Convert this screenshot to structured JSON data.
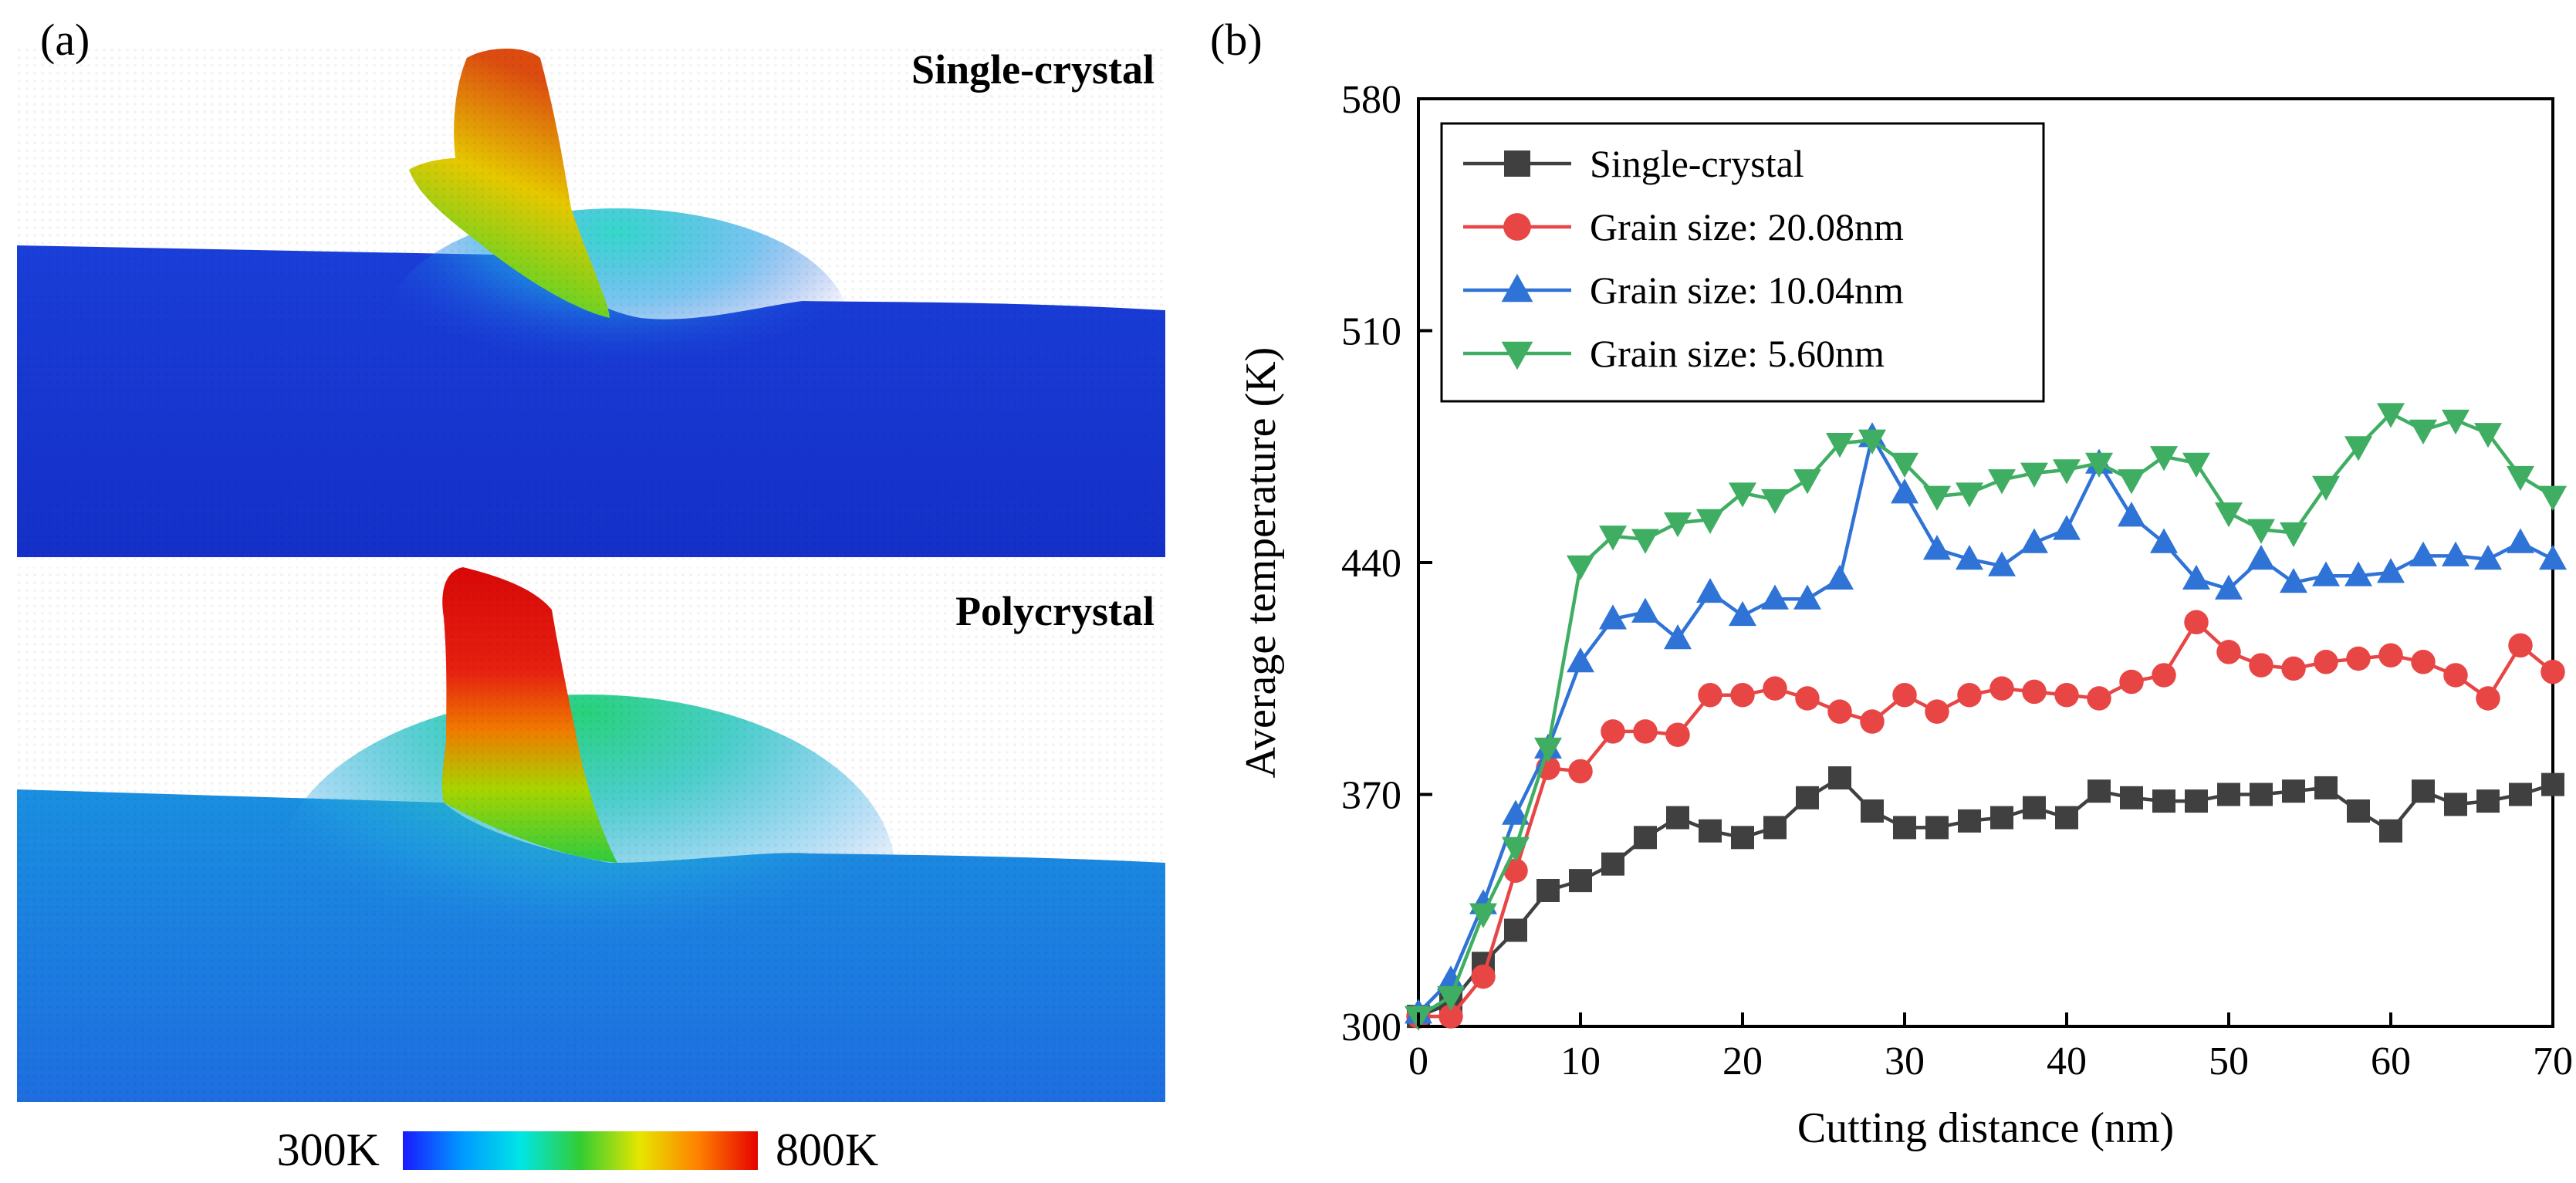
{
  "panel_a": {
    "label": "(a)",
    "top_title": "Single-crystal",
    "bottom_title": "Polycrystal",
    "colorbar": {
      "min_label": "300K",
      "max_label": "800K",
      "colors": [
        "#1a1aff",
        "#0099ff",
        "#00e6e6",
        "#33cc33",
        "#e6e600",
        "#ff8000",
        "#e60000"
      ]
    }
  },
  "panel_b": {
    "label": "(b)"
  },
  "chart_data": {
    "type": "line",
    "title": "",
    "xlabel": "Cutting distance (nm)",
    "ylabel": "Average temperature (K)",
    "xlim": [
      0,
      70
    ],
    "ylim": [
      300,
      580
    ],
    "xticks": [
      0,
      10,
      20,
      30,
      40,
      50,
      60,
      70
    ],
    "yticks": [
      300,
      370,
      440,
      510,
      580
    ],
    "legend_position": "top-left",
    "grid": false,
    "x": [
      0,
      2,
      4,
      6,
      8,
      10,
      12,
      14,
      16,
      18,
      20,
      22,
      24,
      26,
      28,
      30,
      32,
      34,
      36,
      38,
      40,
      42,
      44,
      46,
      48,
      50,
      52,
      54,
      56,
      58,
      60,
      62,
      64,
      66,
      68,
      70
    ],
    "series": [
      {
        "name": "Single-crystal",
        "color": "#404040",
        "marker": "square",
        "values": [
          303,
          307,
          319,
          329,
          341,
          344,
          349,
          357,
          363,
          359,
          357,
          360,
          369,
          375,
          365,
          360,
          360,
          362,
          363,
          366,
          363,
          371,
          369,
          368,
          368,
          370,
          370,
          371,
          372,
          365,
          359,
          371,
          367,
          368,
          370,
          373
        ]
      },
      {
        "name": "Grain size: 20.08nm",
        "color": "#e84545",
        "marker": "circle",
        "values": [
          303,
          303,
          315,
          347,
          378,
          377,
          389,
          389,
          388,
          400,
          400,
          402,
          399,
          395,
          392,
          400,
          395,
          400,
          402,
          401,
          400,
          399,
          404,
          406,
          422,
          413,
          409,
          408,
          410,
          411,
          412,
          410,
          406,
          399,
          415,
          407
        ]
      },
      {
        "name": "Grain size: 10.04nm",
        "color": "#2f73d6",
        "marker": "triangle-up",
        "values": [
          304,
          314,
          337,
          364,
          384,
          410,
          423,
          425,
          417,
          431,
          424,
          429,
          429,
          435,
          478,
          461,
          444,
          441,
          439,
          446,
          450,
          470,
          454,
          446,
          435,
          432,
          441,
          434,
          436,
          436,
          437,
          442,
          442,
          441,
          446,
          441
        ]
      },
      {
        "name": "Grain size: 5.60nm",
        "color": "#3fae62",
        "marker": "triangle-down",
        "values": [
          303,
          309,
          334,
          354,
          384,
          439,
          448,
          447,
          452,
          453,
          461,
          459,
          465,
          476,
          477,
          470,
          460,
          461,
          465,
          467,
          468,
          470,
          465,
          472,
          470,
          455,
          450,
          449,
          463,
          475,
          485,
          480,
          483,
          479,
          466,
          460
        ]
      }
    ]
  }
}
